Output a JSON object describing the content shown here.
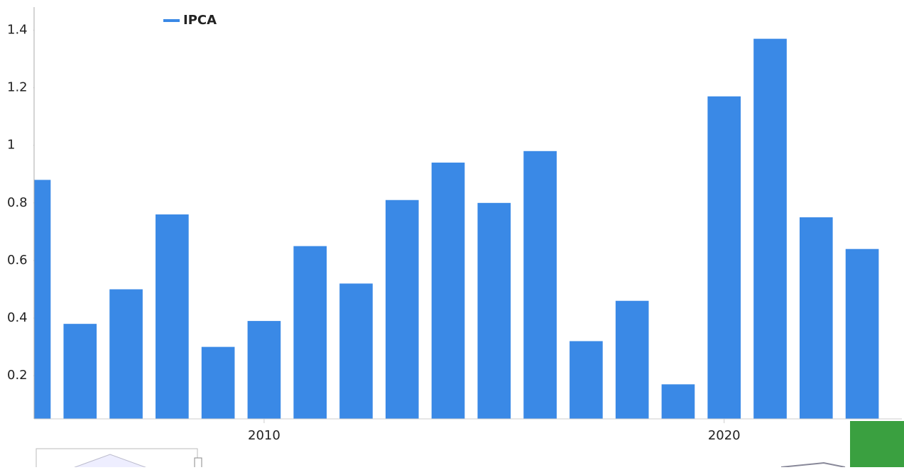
{
  "chart_data": {
    "type": "bar",
    "series": [
      {
        "name": "IPCA",
        "color": "#3a89e6",
        "x": [
          2005,
          2006,
          2007,
          2008,
          2009,
          2010,
          2011,
          2012,
          2013,
          2014,
          2015,
          2016,
          2017,
          2018,
          2019,
          2020,
          2021,
          2022,
          2023
        ],
        "values": [
          0.88,
          0.38,
          0.5,
          0.76,
          0.3,
          0.39,
          0.65,
          0.52,
          0.81,
          0.94,
          0.8,
          0.98,
          0.32,
          0.46,
          0.17,
          1.17,
          1.37,
          0.75,
          0.64
        ]
      }
    ],
    "xlim": [
      2005,
      2023.4
    ],
    "xticks": [
      2010,
      2020
    ],
    "ylim": [
      0.05,
      1.48
    ],
    "yticks": [
      0.2,
      0.4,
      0.6,
      0.8,
      1,
      1.2,
      1.4
    ],
    "legend": "top-left"
  }
}
